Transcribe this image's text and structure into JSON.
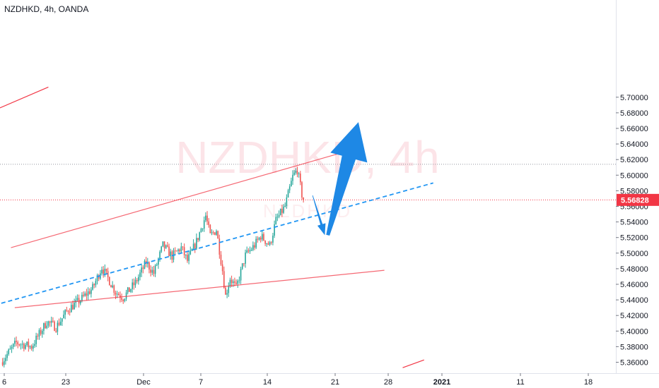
{
  "header": {
    "title": "NZDHKD, 4h, OANDA"
  },
  "watermark": {
    "main": "NZDHKD, 4h",
    "sub": "NZDHKD"
  },
  "price_badge": {
    "label": "5.56828",
    "color": "#f23645"
  },
  "colors": {
    "up": "#26a69a",
    "down": "#ef5350",
    "blue": "#2196f3",
    "red": "#f23645",
    "arrow": "#1e88e5"
  },
  "icons": {
    "arrow_up": "big-blue-arrow-up-icon",
    "arrow_down": "small-blue-arrow-down-icon"
  },
  "chart_data": {
    "type": "candlestick",
    "y_axis": {
      "min": 5.35,
      "max": 5.71,
      "ticks": [
        "5.36000",
        "5.38000",
        "5.40000",
        "5.42000",
        "5.44000",
        "5.46000",
        "5.48000",
        "5.50000",
        "5.52000",
        "5.54000",
        "5.56000",
        "5.58000",
        "5.60000",
        "5.62000",
        "5.64000",
        "5.66000",
        "5.68000",
        "5.70000"
      ]
    },
    "x_axis": {
      "ticks": [
        "6",
        "23",
        "Dec",
        "7",
        "14",
        "21",
        "28",
        "2021",
        "11",
        "18"
      ]
    },
    "last_price": 5.56828,
    "high_level": 5.614,
    "path": [
      [
        0,
        5.36
      ],
      [
        10,
        5.385
      ],
      [
        20,
        5.38
      ],
      [
        30,
        5.412
      ],
      [
        36,
        5.405
      ],
      [
        44,
        5.428
      ],
      [
        52,
        5.44
      ],
      [
        60,
        5.455
      ],
      [
        66,
        5.482
      ],
      [
        70,
        5.468
      ],
      [
        75,
        5.45
      ],
      [
        80,
        5.443
      ],
      [
        88,
        5.462
      ],
      [
        95,
        5.488
      ],
      [
        100,
        5.474
      ],
      [
        106,
        5.51
      ],
      [
        112,
        5.496
      ],
      [
        118,
        5.507
      ],
      [
        122,
        5.49
      ],
      [
        128,
        5.515
      ],
      [
        134,
        5.548
      ],
      [
        137,
        5.522
      ],
      [
        141,
        5.53
      ],
      [
        145,
        5.478
      ],
      [
        147,
        5.445
      ],
      [
        150,
        5.468
      ],
      [
        154,
        5.455
      ],
      [
        160,
        5.497
      ],
      [
        166,
        5.51
      ],
      [
        170,
        5.522
      ],
      [
        176,
        5.51
      ],
      [
        180,
        5.542
      ],
      [
        186,
        5.56
      ],
      [
        191,
        5.598
      ],
      [
        194,
        5.607
      ],
      [
        197,
        5.575
      ]
    ],
    "trendlines": [
      {
        "name": "channel-top",
        "style": "solid",
        "color": "red",
        "points": [
          [
            5.5,
            5.507
          ],
          [
            219,
            5.627
          ]
        ]
      },
      {
        "name": "channel-bottom",
        "style": "solid",
        "color": "red",
        "points": [
          [
            8,
            5.43
          ],
          [
            250,
            5.478
          ]
        ]
      },
      {
        "name": "outer-top",
        "style": "solid",
        "color": "red",
        "points": [
          [
            -90,
            5.612
          ],
          [
            30,
            5.713
          ]
        ]
      },
      {
        "name": "outer-bottom",
        "style": "solid",
        "color": "red",
        "points": [
          [
            262,
            5.353
          ],
          [
            276,
            5.363
          ]
        ]
      },
      {
        "name": "midline",
        "style": "dashed",
        "color": "blue",
        "points": [
          [
            -90,
            5.387
          ],
          [
            282,
            5.59
          ]
        ]
      }
    ],
    "arrows": [
      {
        "name": "down",
        "from": [
          203,
          5.574
        ],
        "to": [
          211,
          5.523
        ]
      },
      {
        "name": "up",
        "from": [
          213,
          5.523
        ],
        "to": [
          233,
          5.668
        ]
      }
    ]
  }
}
